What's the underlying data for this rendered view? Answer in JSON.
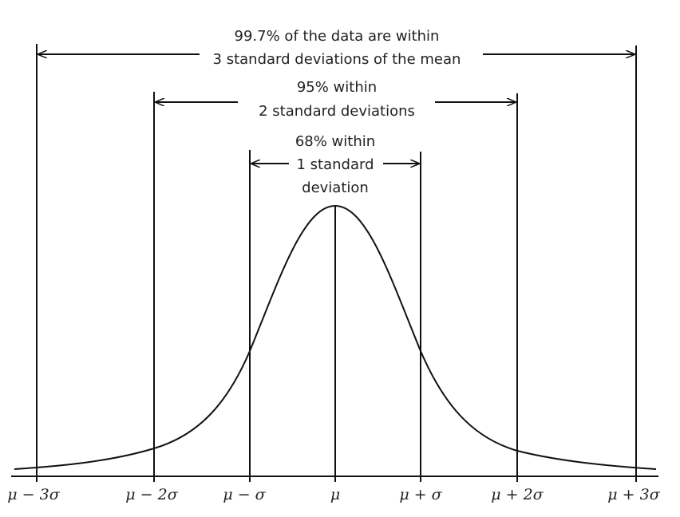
{
  "annotations": [
    {
      "lines": [
        "99.7% of the data are within",
        "3 standard deviations of the mean"
      ]
    },
    {
      "lines": [
        "95% within",
        "2 standard deviations"
      ]
    },
    {
      "lines": [
        "68% within",
        "1 standard",
        "deviation"
      ]
    }
  ],
  "axis_labels": [
    "μ − 3σ",
    "μ − 2σ",
    "μ − σ",
    "μ",
    "μ + σ",
    "μ + 2σ",
    "μ + 3σ"
  ]
}
